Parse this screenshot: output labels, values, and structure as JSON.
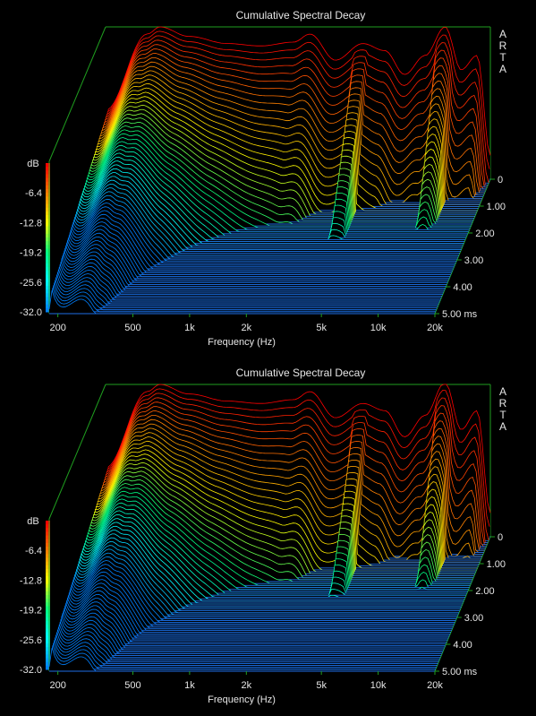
{
  "chart_data": [
    {
      "type": "waterfall",
      "title": "Cumulative Spectral Decay",
      "brand": "ARTA",
      "xlabel": "Frequency (Hz)",
      "x_scale": "log",
      "xlim": [
        180,
        20000
      ],
      "x_ticks": [
        {
          "value": 200,
          "label": "200"
        },
        {
          "value": 500,
          "label": "500"
        },
        {
          "value": 1000,
          "label": "1k"
        },
        {
          "value": 2000,
          "label": "2k"
        },
        {
          "value": 5000,
          "label": "5k"
        },
        {
          "value": 10000,
          "label": "10k"
        },
        {
          "value": 20000,
          "label": "20k"
        }
      ],
      "zlabel": "dB",
      "zlim": [
        -32,
        0
      ],
      "z_ticks": [
        "-6.4",
        "-12.8",
        "-19.2",
        "-25.6",
        "-32.0"
      ],
      "time_ticks": [
        "0",
        "1.00",
        "2.00",
        "3.00",
        "4.00",
        "5.00 ms"
      ],
      "tlim": [
        0,
        5
      ],
      "slices": 70,
      "colormap": [
        "#ff0000",
        "#ff8000",
        "#ffff00",
        "#00ff80",
        "#00ffff",
        "#0080ff"
      ],
      "freq_response_db": [
        {
          "f": 180,
          "db": -17.5
        },
        {
          "f": 300,
          "db": -1.5
        },
        {
          "f": 350,
          "db": 0.0
        },
        {
          "f": 500,
          "db": -2.0
        },
        {
          "f": 800,
          "db": -3.5
        },
        {
          "f": 1200,
          "db": -4.0
        },
        {
          "f": 1800,
          "db": -3.2
        },
        {
          "f": 2200,
          "db": -1.5
        },
        {
          "f": 3000,
          "db": -7.0
        },
        {
          "f": 4200,
          "db": -3.5
        },
        {
          "f": 5500,
          "db": -5.0
        },
        {
          "f": 7000,
          "db": -10.0
        },
        {
          "f": 9000,
          "db": -6.0
        },
        {
          "f": 11500,
          "db": 0.0
        },
        {
          "f": 14000,
          "db": -9.0
        },
        {
          "f": 17000,
          "db": -6.0
        },
        {
          "f": 20000,
          "db": -27.0
        }
      ]
    },
    {
      "type": "waterfall",
      "title": "Cumulative Spectral Decay",
      "brand": "ARTA",
      "xlabel": "Frequency (Hz)",
      "x_scale": "log",
      "xlim": [
        180,
        20000
      ],
      "x_ticks": [
        {
          "value": 200,
          "label": "200"
        },
        {
          "value": 500,
          "label": "500"
        },
        {
          "value": 1000,
          "label": "1k"
        },
        {
          "value": 2000,
          "label": "2k"
        },
        {
          "value": 5000,
          "label": "5k"
        },
        {
          "value": 10000,
          "label": "10k"
        },
        {
          "value": 20000,
          "label": "20k"
        }
      ],
      "zlabel": "dB",
      "zlim": [
        -32,
        0
      ],
      "z_ticks": [
        "-6.4",
        "-12.8",
        "-19.2",
        "-25.6",
        "-32.0"
      ],
      "time_ticks": [
        "0",
        "1.00",
        "2.00",
        "3.00",
        "4.00",
        "5.00 ms"
      ],
      "tlim": [
        0,
        5
      ],
      "slices": 70,
      "colormap": [
        "#ff0000",
        "#ff8000",
        "#ffff00",
        "#00ff80",
        "#00ffff",
        "#0080ff"
      ],
      "freq_response_db": [
        {
          "f": 180,
          "db": -17.5
        },
        {
          "f": 300,
          "db": -1.5
        },
        {
          "f": 350,
          "db": 0.0
        },
        {
          "f": 500,
          "db": -2.0
        },
        {
          "f": 800,
          "db": -3.5
        },
        {
          "f": 1200,
          "db": -4.0
        },
        {
          "f": 1800,
          "db": -3.2
        },
        {
          "f": 2200,
          "db": -1.5
        },
        {
          "f": 3000,
          "db": -7.0
        },
        {
          "f": 4200,
          "db": -4.0
        },
        {
          "f": 5500,
          "db": -5.5
        },
        {
          "f": 7000,
          "db": -11.0
        },
        {
          "f": 9000,
          "db": -6.5
        },
        {
          "f": 11500,
          "db": 0.5
        },
        {
          "f": 14000,
          "db": -9.5
        },
        {
          "f": 17000,
          "db": -5.5
        },
        {
          "f": 20000,
          "db": -27.0
        }
      ]
    }
  ]
}
